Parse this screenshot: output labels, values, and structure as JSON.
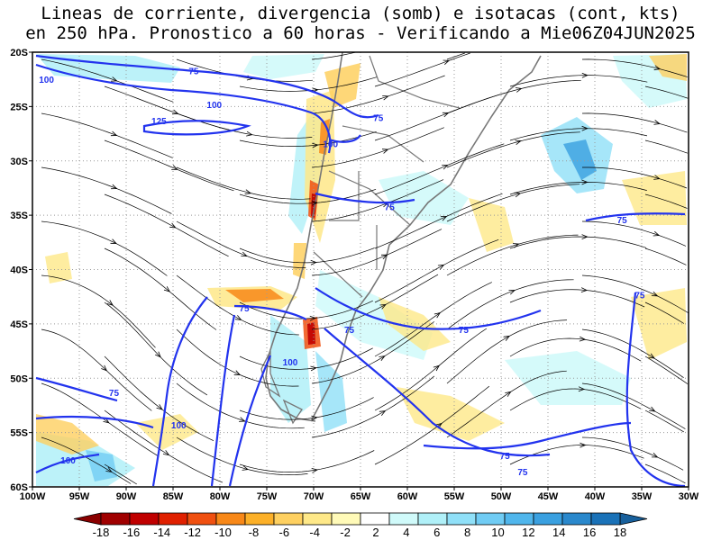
{
  "title": {
    "line1": "Lineas de corriente, divergencia (somb) e isotacas (cont, kts)",
    "line2": "en 250 hPa. Pronostico a 60 horas - Verificando a Mie06Z04JUN2025"
  },
  "map": {
    "lat_labels": [
      "20S",
      "25S",
      "30S",
      "35S",
      "40S",
      "45S",
      "50S",
      "55S",
      "60S"
    ],
    "lon_labels": [
      "100W",
      "95W",
      "90W",
      "85W",
      "80W",
      "75W",
      "70W",
      "65W",
      "60W",
      "55W",
      "50W",
      "45W",
      "40W",
      "35W",
      "30W"
    ],
    "lat_range": [
      -60,
      -20
    ],
    "lon_range": [
      -100,
      -30
    ],
    "grid": "dotted",
    "isotach_labels": [
      {
        "text": "100",
        "lon": -98.5,
        "lat": -22.5
      },
      {
        "text": "75",
        "lon": -82.8,
        "lat": -21.7
      },
      {
        "text": "100",
        "lon": -80.6,
        "lat": -24.8
      },
      {
        "text": "125",
        "lon": -86.5,
        "lat": -26.3
      },
      {
        "text": "75",
        "lon": -63.1,
        "lat": -26.0
      },
      {
        "text": "100",
        "lon": -68.2,
        "lat": -28.4
      },
      {
        "text": "75",
        "lon": -61.9,
        "lat": -34.2
      },
      {
        "text": "75",
        "lon": -37.1,
        "lat": -35.4
      },
      {
        "text": "75",
        "lon": -35.2,
        "lat": -42.3
      },
      {
        "text": "75",
        "lon": -77.4,
        "lat": -43.5
      },
      {
        "text": "75",
        "lon": -66.2,
        "lat": -45.5
      },
      {
        "text": "75",
        "lon": -54.0,
        "lat": -45.5
      },
      {
        "text": "100",
        "lon": -72.5,
        "lat": -48.5
      },
      {
        "text": "75",
        "lon": -91.3,
        "lat": -51.3
      },
      {
        "text": "100",
        "lon": -84.4,
        "lat": -54.3
      },
      {
        "text": "100",
        "lon": -96.2,
        "lat": -57.5
      },
      {
        "text": "75",
        "lon": -49.6,
        "lat": -57.1
      },
      {
        "text": "75",
        "lon": -47.7,
        "lat": -58.6
      }
    ]
  },
  "colorbar": {
    "labels": [
      "-18",
      "-16",
      "-14",
      "-12",
      "-10",
      "-8",
      "-6",
      "-4",
      "-2",
      "2",
      "4",
      "6",
      "8",
      "10",
      "12",
      "14",
      "16",
      "18"
    ],
    "colors": [
      "#a00000",
      "#c00000",
      "#e02000",
      "#f05010",
      "#f88818",
      "#fcb028",
      "#fed060",
      "#fee888",
      "#fffab8",
      "#ffffff",
      "#d0fafa",
      "#b0f0f8",
      "#90e0f8",
      "#70ccf4",
      "#50b6ec",
      "#3aa0e0",
      "#2a88cc",
      "#1a72b8"
    ],
    "left_triangle_color": "#8a0000",
    "right_triangle_color": "#18609c"
  },
  "colors": {
    "isotach": "#2233ee",
    "coast": "#777777",
    "streamline": "#000000"
  }
}
